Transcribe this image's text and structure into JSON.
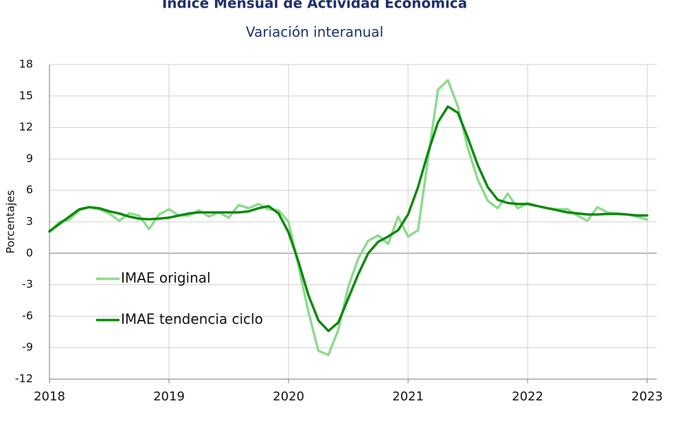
{
  "chart_data": {
    "type": "line",
    "title": "Índice Mensual de  Actividad Económica",
    "subtitle": "Variación interanual",
    "y_label": "Porcentajes",
    "x": [
      2018,
      2018.0833,
      2018.1667,
      2018.25,
      2018.3333,
      2018.4167,
      2018.5,
      2018.5833,
      2018.6667,
      2018.75,
      2018.8333,
      2018.9167,
      2019,
      2019.0833,
      2019.1667,
      2019.25,
      2019.3333,
      2019.4167,
      2019.5,
      2019.5833,
      2019.6667,
      2019.75,
      2019.8333,
      2019.9167,
      2020,
      2020.0833,
      2020.1667,
      2020.25,
      2020.3333,
      2020.4167,
      2020.5,
      2020.5833,
      2020.6667,
      2020.75,
      2020.8333,
      2020.9167,
      2021,
      2021.0833,
      2021.1667,
      2021.25,
      2021.3333,
      2021.4167,
      2021.5,
      2021.5833,
      2021.6667,
      2021.75,
      2021.8333,
      2021.9167,
      2022,
      2022.0833,
      2022.1667,
      2022.25,
      2022.3333,
      2022.4167,
      2022.5,
      2022.5833,
      2022.6667,
      2022.75,
      2022.8333,
      2022.9167,
      2023
    ],
    "series": [
      {
        "name": "IMAE original",
        "color": "#8fd98f",
        "width": 3.5,
        "values": [
          2.0,
          3.0,
          3.2,
          4.1,
          4.4,
          4.2,
          3.8,
          3.1,
          3.8,
          3.6,
          2.3,
          3.7,
          4.2,
          3.6,
          3.6,
          4.1,
          3.5,
          3.9,
          3.4,
          4.6,
          4.3,
          4.7,
          4.2,
          4.1,
          3.0,
          -1.2,
          -5.6,
          -9.3,
          -9.7,
          -7.3,
          -3.2,
          -0.5,
          1.2,
          1.7,
          0.9,
          3.5,
          1.6,
          2.2,
          9.0,
          15.6,
          16.5,
          14.0,
          10.0,
          7.0,
          5.0,
          4.3,
          5.7,
          4.3,
          4.8,
          4.5,
          4.3,
          4.2,
          4.2,
          3.6,
          3.1,
          4.4,
          3.9,
          3.8,
          3.7,
          3.5,
          3.2
        ]
      },
      {
        "name": "IMAE tendencia ciclo",
        "color": "#0a8a0a",
        "width": 3.5,
        "values": [
          2.1,
          2.8,
          3.5,
          4.2,
          4.4,
          4.3,
          4.0,
          3.8,
          3.5,
          3.3,
          3.25,
          3.3,
          3.4,
          3.6,
          3.8,
          3.9,
          3.9,
          3.9,
          3.9,
          3.9,
          4.0,
          4.3,
          4.5,
          3.8,
          2.0,
          -0.8,
          -4.0,
          -6.4,
          -7.4,
          -6.6,
          -4.3,
          -2.0,
          0.0,
          1.1,
          1.6,
          2.2,
          3.7,
          6.3,
          9.6,
          12.5,
          14.0,
          13.4,
          11.0,
          8.4,
          6.3,
          5.1,
          4.8,
          4.7,
          4.7,
          4.5,
          4.3,
          4.1,
          3.9,
          3.8,
          3.7,
          3.7,
          3.75,
          3.75,
          3.7,
          3.6,
          3.6
        ]
      }
    ],
    "xlim": [
      2018,
      2023.08
    ],
    "xticks": [
      2018,
      2019,
      2020,
      2021,
      2022,
      2023
    ],
    "ylim": [
      -12,
      18
    ],
    "yticks": [
      -12,
      -9,
      -6,
      -3,
      0,
      3,
      6,
      9,
      12,
      15,
      18
    ],
    "grid": true,
    "tick_color": "#000000",
    "negative_tick_color": "#e00000",
    "legend": "left"
  }
}
